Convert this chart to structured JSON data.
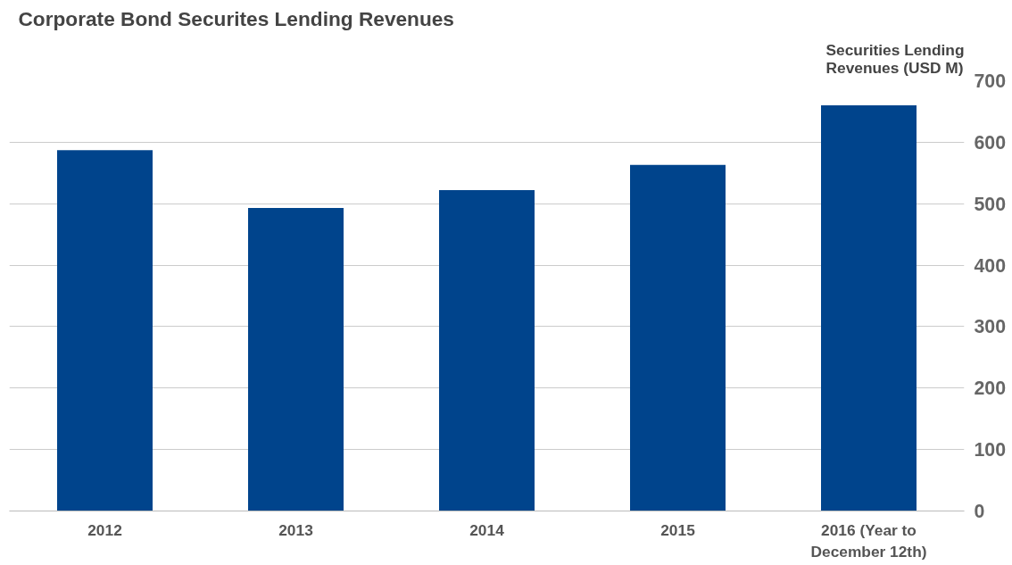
{
  "chart_data": {
    "type": "bar",
    "title": "Corporate Bond Securites Lending Revenues",
    "ylabel": "Securities Lending Revenues (USD M)",
    "categories": [
      "2012",
      "2013",
      "2014",
      "2015",
      "2016 (Year to December 12th)"
    ],
    "values": [
      587,
      493,
      522,
      563,
      660
    ],
    "color": "#00448c",
    "ylim": [
      0,
      700
    ],
    "yticks": [
      0,
      100,
      200,
      300,
      400,
      500,
      600,
      700
    ],
    "grid": "y"
  }
}
